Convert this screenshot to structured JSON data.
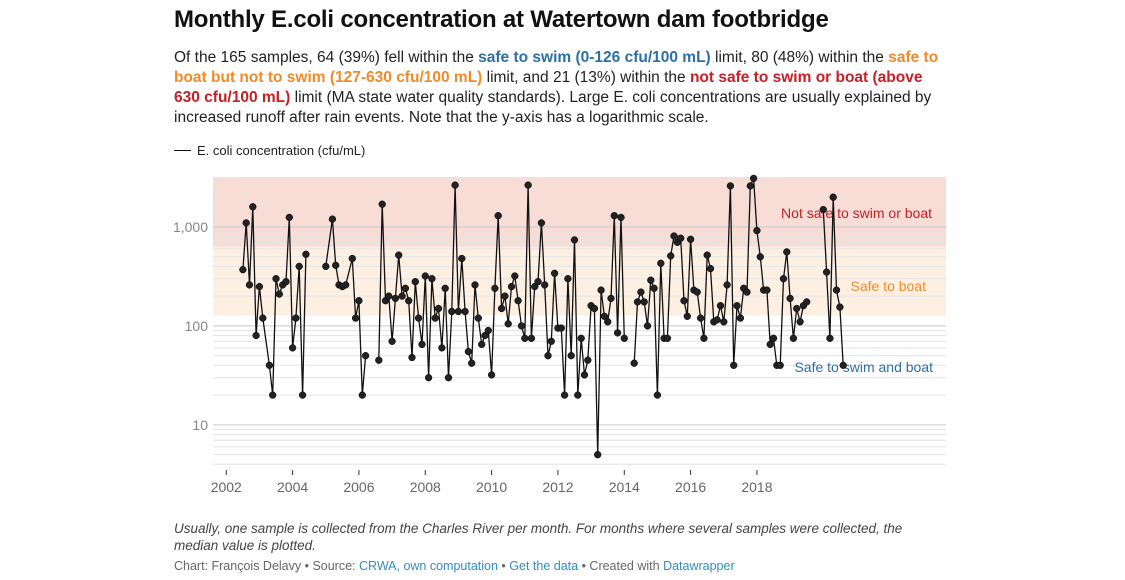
{
  "title": "Monthly E.coli concentration at Watertown dam footbridge",
  "description": {
    "p1": "Of the 165 samples, 64 (39%) fell within the ",
    "safe_swim": "safe to swim (0-126 cfu/100 mL)",
    "p2": " limit, 80 (48%) within the ",
    "safe_boat": "safe to boat but not to swim (127-630 cfu/100 mL)",
    "p3": " limit, and 21 (13%) within the ",
    "not_safe": "not safe to swim or boat (above 630 cfu/100 mL)",
    "p4": " limit (MA state water quality standards). Large E. coli concentrations are usually explained by increased runoff after rain events. Note that the y-axis has a logarithmic scale."
  },
  "legend_label": "E. coli concentration (cfu/mL)",
  "colors": {
    "safe_swim": "#2c6fa5",
    "safe_boat": "#f08b2b",
    "not_safe": "#c62026",
    "band_red": "#f8dcd6",
    "band_orange": "#fdf0e2",
    "line": "#111111"
  },
  "chart_data": {
    "type": "line",
    "scale": "log",
    "ylim": [
      3.5,
      3200
    ],
    "xlim": [
      2001.6,
      2023.7
    ],
    "x_ticks": [
      2002,
      2004,
      2006,
      2008,
      2010,
      2012,
      2014,
      2016,
      2018
    ],
    "y_ticks": [
      {
        "value": 10,
        "label": "10"
      },
      {
        "value": 100,
        "label": "100"
      },
      {
        "value": 1000,
        "label": "1,000"
      }
    ],
    "zones": [
      {
        "name": "not_safe",
        "label": "Not safe to swim or boat",
        "from": 630,
        "to": 3200
      },
      {
        "name": "safe_boat",
        "label": "Safe to boat",
        "from": 127,
        "to": 630
      },
      {
        "name": "safe_swim",
        "label": "Safe to swim and boat",
        "from": 3.5,
        "to": 127
      }
    ],
    "series": [
      {
        "name": "E. coli concentration (cfu/mL)",
        "segments": [
          [
            [
              2002.5,
              370
            ],
            [
              2002.6,
              1100
            ],
            [
              2002.7,
              260
            ],
            [
              2002.8,
              1600
            ],
            [
              2002.9,
              80
            ],
            [
              2003.0,
              250
            ],
            [
              2003.1,
              120
            ],
            [
              2003.3,
              40
            ],
            [
              2003.4,
              20
            ],
            [
              2003.5,
              300
            ],
            [
              2003.6,
              210
            ],
            [
              2003.7,
              260
            ],
            [
              2003.8,
              280
            ],
            [
              2003.9,
              1250
            ],
            [
              2004.0,
              60
            ],
            [
              2004.1,
              120
            ],
            [
              2004.2,
              400
            ],
            [
              2004.3,
              20
            ],
            [
              2004.4,
              530
            ]
          ],
          [
            [
              2005.0,
              400
            ],
            [
              2005.2,
              1200
            ],
            [
              2005.3,
              410
            ],
            [
              2005.4,
              260
            ],
            [
              2005.5,
              250
            ],
            [
              2005.6,
              260
            ],
            [
              2005.8,
              480
            ],
            [
              2005.9,
              120
            ],
            [
              2006.0,
              180
            ],
            [
              2006.1,
              20
            ],
            [
              2006.2,
              50
            ]
          ],
          [
            [
              2006.6,
              45
            ],
            [
              2006.7,
              1700
            ],
            [
              2006.8,
              180
            ],
            [
              2006.9,
              200
            ],
            [
              2007.0,
              70
            ],
            [
              2007.1,
              190
            ],
            [
              2007.2,
              520
            ],
            [
              2007.3,
              200
            ],
            [
              2007.4,
              240
            ],
            [
              2007.5,
              180
            ],
            [
              2007.6,
              48
            ],
            [
              2007.7,
              280
            ],
            [
              2007.8,
              120
            ],
            [
              2007.9,
              65
            ],
            [
              2008.0,
              320
            ],
            [
              2008.1,
              30
            ],
            [
              2008.2,
              300
            ],
            [
              2008.3,
              120
            ],
            [
              2008.4,
              150
            ],
            [
              2008.5,
              60
            ],
            [
              2008.6,
              240
            ],
            [
              2008.7,
              30
            ],
            [
              2008.8,
              140
            ],
            [
              2008.9,
              2650
            ],
            [
              2009.0,
              140
            ],
            [
              2009.1,
              480
            ],
            [
              2009.2,
              140
            ],
            [
              2009.3,
              55
            ],
            [
              2009.4,
              42
            ],
            [
              2009.5,
              260
            ],
            [
              2009.6,
              120
            ],
            [
              2009.7,
              65
            ],
            [
              2009.8,
              80
            ],
            [
              2009.9,
              90
            ],
            [
              2010.0,
              32
            ],
            [
              2010.1,
              240
            ],
            [
              2010.2,
              1300
            ],
            [
              2010.3,
              150
            ],
            [
              2010.4,
              200
            ],
            [
              2010.5,
              105
            ],
            [
              2010.6,
              250
            ],
            [
              2010.7,
              320
            ],
            [
              2010.8,
              180
            ],
            [
              2010.9,
              100
            ],
            [
              2011.0,
              75
            ],
            [
              2011.1,
              2650
            ],
            [
              2011.2,
              75
            ],
            [
              2011.3,
              250
            ],
            [
              2011.4,
              280
            ],
            [
              2011.5,
              1100
            ],
            [
              2011.6,
              260
            ],
            [
              2011.7,
              50
            ],
            [
              2011.8,
              70
            ],
            [
              2011.9,
              340
            ],
            [
              2012.0,
              95
            ],
            [
              2012.1,
              95
            ],
            [
              2012.2,
              20
            ],
            [
              2012.3,
              300
            ],
            [
              2012.4,
              50
            ],
            [
              2012.5,
              740
            ],
            [
              2012.6,
              20
            ],
            [
              2012.7,
              75
            ],
            [
              2012.8,
              32
            ],
            [
              2012.9,
              45
            ],
            [
              2013.0,
              160
            ],
            [
              2013.1,
              150
            ],
            [
              2013.2,
              5
            ],
            [
              2013.3,
              230
            ],
            [
              2013.4,
              125
            ],
            [
              2013.5,
              110
            ],
            [
              2013.6,
              190
            ],
            [
              2013.7,
              1300
            ],
            [
              2013.8,
              85
            ],
            [
              2013.9,
              1250
            ],
            [
              2014.0,
              75
            ]
          ],
          [
            [
              2014.3,
              42
            ],
            [
              2014.4,
              175
            ],
            [
              2014.5,
              220
            ],
            [
              2014.6,
              175
            ],
            [
              2014.7,
              100
            ],
            [
              2014.8,
              290
            ],
            [
              2014.9,
              240
            ],
            [
              2015.0,
              20
            ],
            [
              2015.1,
              430
            ],
            [
              2015.2,
              75
            ],
            [
              2015.3,
              75
            ],
            [
              2015.4,
              510
            ],
            [
              2015.5,
              810
            ],
            [
              2015.6,
              700
            ],
            [
              2015.7,
              770
            ],
            [
              2015.8,
              180
            ],
            [
              2015.9,
              125
            ],
            [
              2016.0,
              750
            ],
            [
              2016.1,
              230
            ],
            [
              2016.2,
              220
            ],
            [
              2016.3,
              120
            ],
            [
              2016.4,
              75
            ],
            [
              2016.5,
              520
            ],
            [
              2016.6,
              380
            ],
            [
              2016.7,
              110
            ],
            [
              2016.8,
              115
            ],
            [
              2016.9,
              160
            ],
            [
              2017.0,
              110
            ],
            [
              2017.1,
              260
            ],
            [
              2017.2,
              2600
            ],
            [
              2017.3,
              40
            ],
            [
              2017.4,
              160
            ],
            [
              2017.5,
              120
            ],
            [
              2017.6,
              240
            ],
            [
              2017.7,
              220
            ],
            [
              2017.8,
              2600
            ],
            [
              2017.9,
              3100
            ],
            [
              2018.0,
              920
            ],
            [
              2018.1,
              500
            ],
            [
              2018.2,
              230
            ],
            [
              2018.3,
              230
            ],
            [
              2018.4,
              65
            ],
            [
              2018.5,
              75
            ],
            [
              2018.6,
              40
            ],
            [
              2018.7,
              40
            ],
            [
              2018.8,
              300
            ],
            [
              2018.9,
              560
            ],
            [
              2019.0,
              190
            ],
            [
              2019.1,
              75
            ],
            [
              2019.2,
              150
            ],
            [
              2019.3,
              110
            ],
            [
              2019.4,
              160
            ],
            [
              2019.5,
              175
            ]
          ],
          [
            [
              2020.0,
              1500
            ],
            [
              2020.1,
              350
            ],
            [
              2020.2,
              75
            ],
            [
              2020.3,
              2000
            ],
            [
              2020.4,
              230
            ],
            [
              2020.5,
              155
            ],
            [
              2020.6,
              40
            ]
          ]
        ]
      }
    ]
  },
  "note": "Usually, one sample is collected from the Charles River per month. For months where several samples were collected, the median value is plotted.",
  "credits": {
    "prefix": "Chart: François Delavy • Source: ",
    "source_link": "CRWA, own computation",
    "sep": " • ",
    "data_link": "Get the data",
    "created": " • Created with ",
    "tool_link": "Datawrapper"
  }
}
